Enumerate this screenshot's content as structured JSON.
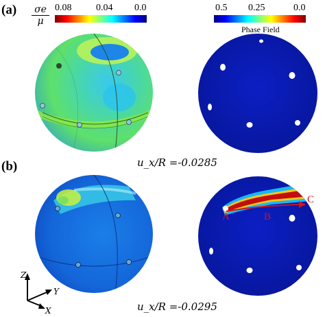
{
  "panels": {
    "a_label": "(a)",
    "b_label": "(b)",
    "a_caption": "u_x/R =-0.0285",
    "b_caption": "u_x/R =-0.0295"
  },
  "stress_colorbar": {
    "symbol_num": "σe",
    "symbol_den": "μ",
    "ticks": [
      "0.08",
      "0.04",
      "0.0"
    ]
  },
  "phase_colorbar": {
    "title": "Phase Field",
    "ticks": [
      "0.5",
      "0.25",
      "0.0"
    ]
  },
  "crack_points": [
    "A",
    "B",
    "C"
  ],
  "axes_triad": [
    "Z",
    "Y",
    "X"
  ],
  "colors": {
    "jet_low": "#00007f",
    "jet_high": "#7f0000",
    "crack": "#d4141b"
  }
}
